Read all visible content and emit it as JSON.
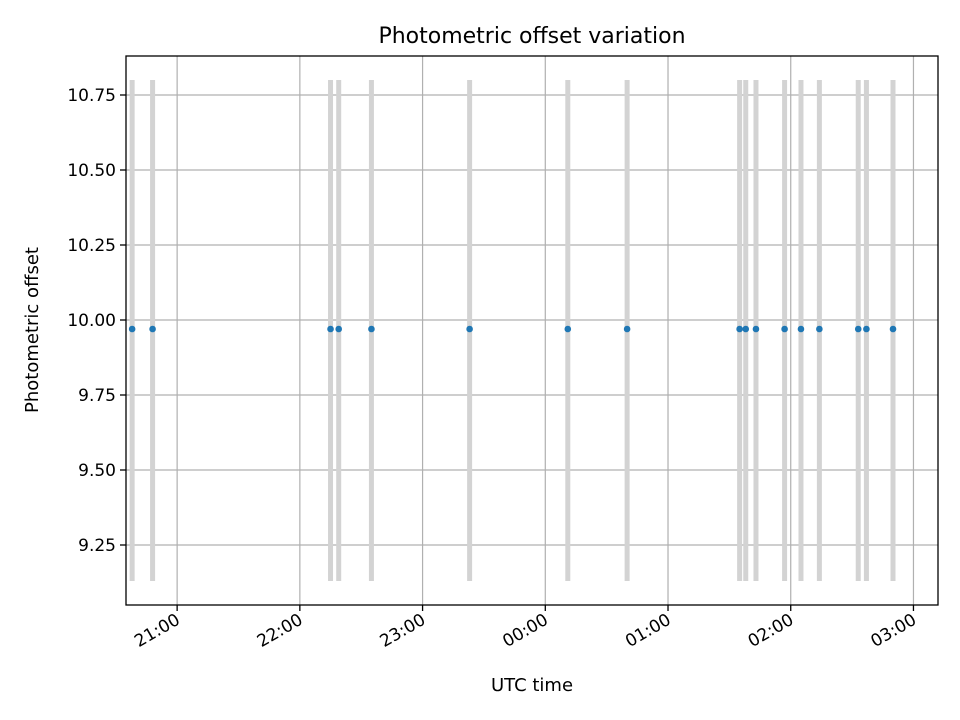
{
  "chart_data": {
    "type": "scatter",
    "title": "Photometric offset variation",
    "xlabel": "UTC time",
    "ylabel": "Photometric offset",
    "x_is_time": true,
    "xlim": [
      "20:35",
      "03:12"
    ],
    "ylim": [
      9.05,
      10.88
    ],
    "x_ticks": [
      "21:00",
      "22:00",
      "23:00",
      "00:00",
      "01:00",
      "02:00",
      "03:00"
    ],
    "y_ticks": [
      "9.25",
      "9.50",
      "9.75",
      "10.00",
      "10.25",
      "10.50",
      "10.75"
    ],
    "grid": true,
    "series": [
      {
        "color": "#1f77b4",
        "errorbar_color": "#d3d3d3",
        "points": [
          {
            "x": "20:38",
            "y": 9.97,
            "err_low": 9.13,
            "err_high": 10.8
          },
          {
            "x": "20:48",
            "y": 9.97,
            "err_low": 9.13,
            "err_high": 10.8
          },
          {
            "x": "22:15",
            "y": 9.97,
            "err_low": 9.13,
            "err_high": 10.8
          },
          {
            "x": "22:19",
            "y": 9.97,
            "err_low": 9.13,
            "err_high": 10.8
          },
          {
            "x": "22:35",
            "y": 9.97,
            "err_low": 9.13,
            "err_high": 10.8
          },
          {
            "x": "23:23",
            "y": 9.97,
            "err_low": 9.13,
            "err_high": 10.8
          },
          {
            "x": "00:11",
            "y": 9.97,
            "err_low": 9.13,
            "err_high": 10.8
          },
          {
            "x": "00:40",
            "y": 9.97,
            "err_low": 9.13,
            "err_high": 10.8
          },
          {
            "x": "01:35",
            "y": 9.97,
            "err_low": 9.13,
            "err_high": 10.8
          },
          {
            "x": "01:38",
            "y": 9.97,
            "err_low": 9.13,
            "err_high": 10.8
          },
          {
            "x": "01:43",
            "y": 9.97,
            "err_low": 9.13,
            "err_high": 10.8
          },
          {
            "x": "01:57",
            "y": 9.97,
            "err_low": 9.13,
            "err_high": 10.8
          },
          {
            "x": "02:05",
            "y": 9.97,
            "err_low": 9.13,
            "err_high": 10.8
          },
          {
            "x": "02:14",
            "y": 9.97,
            "err_low": 9.13,
            "err_high": 10.8
          },
          {
            "x": "02:33",
            "y": 9.97,
            "err_low": 9.13,
            "err_high": 10.8
          },
          {
            "x": "02:37",
            "y": 9.97,
            "err_low": 9.13,
            "err_high": 10.8
          },
          {
            "x": "02:50",
            "y": 9.97,
            "err_low": 9.13,
            "err_high": 10.8
          }
        ]
      }
    ]
  }
}
